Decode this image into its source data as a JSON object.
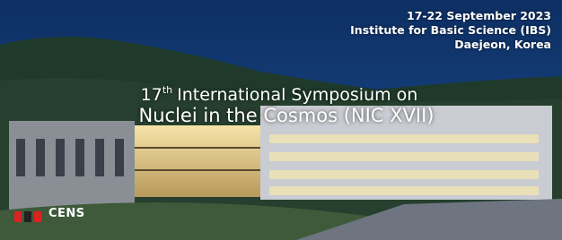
{
  "banner": {
    "date": "17-22 September 2023",
    "venue": "Institute for Basic Science (IBS)",
    "city": "Daejeon, Korea",
    "title_line1": {
      "ordinal": "17",
      "suffix": "th",
      "rest": "International Symposium on"
    },
    "title_line2": "Nuclei in the Cosmos (NIC XVII)",
    "logo_text": "CENS"
  }
}
